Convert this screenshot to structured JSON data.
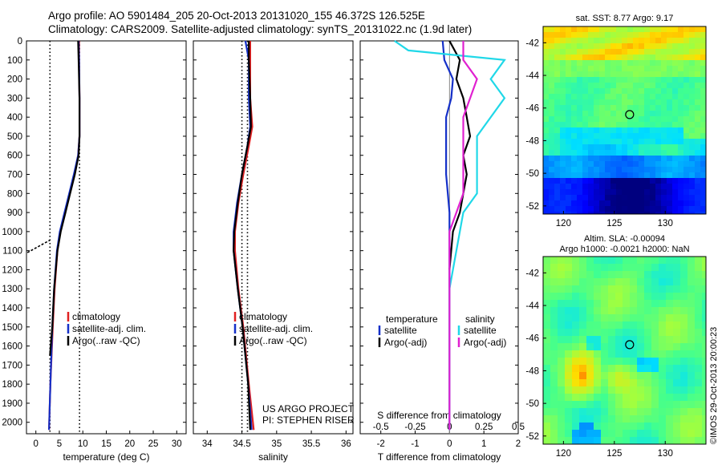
{
  "header": {
    "line1": "Argo profile: AO 5901484_205 20-Oct-2013 20131020_155 46.372S 126.525E",
    "line2": "Climatology: CARS2009. Satellite-adjusted climatology: synTS_20131022.nc (1.9d later)"
  },
  "colors": {
    "climatology": "#e02020",
    "satellite": "#1530c8",
    "argo": "#000000",
    "sat_salinity": "#20d8e8",
    "argo_salinity": "#e020d0"
  },
  "depth_axis": {
    "ticks": [
      "0",
      "100",
      "200",
      "300",
      "400",
      "500",
      "600",
      "700",
      "800",
      "900",
      "1000",
      "1100",
      "1200",
      "1300",
      "1400",
      "1500",
      "1600",
      "1700",
      "1800",
      "1900",
      "2000"
    ],
    "range": [
      0,
      2060
    ]
  },
  "chart_data": [
    {
      "type": "line",
      "id": "temperature",
      "xlabel": "temperature (deg C)",
      "xlim": [
        -2,
        32
      ],
      "xticks": [
        "0",
        "5",
        "10",
        "15",
        "20",
        "25",
        "30"
      ],
      "ylim": [
        0,
        2060
      ],
      "reference_lines": [
        3,
        9.3
      ],
      "legend": [
        "climatology",
        "satellite-adj. clim.",
        "Argo(..raw -QC)"
      ],
      "series": [
        {
          "name": "climatology",
          "color": "#e02020",
          "points": [
            [
              9.2,
              0
            ],
            [
              9.2,
              100
            ],
            [
              9.3,
              300
            ],
            [
              9.3,
              500
            ],
            [
              9.0,
              600
            ],
            [
              8.2,
              700
            ],
            [
              7.2,
              800
            ],
            [
              6.2,
              900
            ],
            [
              5.2,
              1000
            ],
            [
              4.6,
              1100
            ],
            [
              4.0,
              1300
            ],
            [
              3.6,
              1500
            ],
            [
              3.1,
              1800
            ],
            [
              2.8,
              2040
            ]
          ]
        },
        {
          "name": "satellite-adj. clim.",
          "color": "#1530c8",
          "points": [
            [
              9.1,
              0
            ],
            [
              9.2,
              100
            ],
            [
              9.3,
              300
            ],
            [
              9.3,
              500
            ],
            [
              9.0,
              600
            ],
            [
              8.1,
              700
            ],
            [
              7.1,
              800
            ],
            [
              6.1,
              900
            ],
            [
              5.1,
              1000
            ],
            [
              4.5,
              1100
            ],
            [
              3.9,
              1300
            ],
            [
              3.5,
              1500
            ],
            [
              3.1,
              1800
            ],
            [
              2.8,
              2040
            ]
          ]
        },
        {
          "name": "Argo(..raw -QC)",
          "color": "#000000",
          "points": [
            [
              9.0,
              0
            ],
            [
              9.1,
              100
            ],
            [
              9.3,
              300
            ],
            [
              9.3,
              500
            ],
            [
              9.1,
              600
            ],
            [
              8.3,
              700
            ],
            [
              7.3,
              800
            ],
            [
              6.3,
              900
            ],
            [
              5.3,
              1000
            ],
            [
              4.6,
              1100
            ],
            [
              3.9,
              1300
            ],
            [
              3.5,
              1500
            ],
            [
              3.0,
              1650
            ]
          ]
        }
      ]
    },
    {
      "type": "line",
      "id": "salinity",
      "xlabel": "salinity",
      "xlim": [
        33.8,
        36.1
      ],
      "xticks": [
        "34",
        "34.5",
        "35",
        "35.5",
        "36"
      ],
      "ylim": [
        0,
        2060
      ],
      "reference_lines": [
        34.5,
        34.58
      ],
      "legend": [
        "climatology",
        "satellite-adj. clim.",
        "Argo(..raw -QC)"
      ],
      "note": [
        "US ARGO PROJECT",
        "PI: STEPHEN RISER"
      ],
      "series": [
        {
          "name": "climatology",
          "color": "#e02020",
          "points": [
            [
              34.62,
              0
            ],
            [
              34.62,
              100
            ],
            [
              34.62,
              300
            ],
            [
              34.65,
              450
            ],
            [
              34.6,
              550
            ],
            [
              34.52,
              700
            ],
            [
              34.45,
              850
            ],
            [
              34.4,
              1000
            ],
            [
              34.4,
              1100
            ],
            [
              34.45,
              1300
            ],
            [
              34.52,
              1500
            ],
            [
              34.6,
              1800
            ],
            [
              34.67,
              2040
            ]
          ]
        },
        {
          "name": "satellite-adj. clim.",
          "color": "#1530c8",
          "points": [
            [
              34.55,
              0
            ],
            [
              34.6,
              100
            ],
            [
              34.6,
              300
            ],
            [
              34.62,
              450
            ],
            [
              34.58,
              550
            ],
            [
              34.5,
              700
            ],
            [
              34.43,
              850
            ],
            [
              34.38,
              1000
            ],
            [
              34.38,
              1100
            ],
            [
              34.44,
              1300
            ],
            [
              34.51,
              1500
            ],
            [
              34.59,
              1800
            ],
            [
              34.64,
              2040
            ]
          ]
        },
        {
          "name": "Argo(..raw -QC)",
          "color": "#000000",
          "points": [
            [
              34.6,
              0
            ],
            [
              34.6,
              100
            ],
            [
              34.62,
              300
            ],
            [
              34.63,
              450
            ],
            [
              34.58,
              550
            ],
            [
              34.5,
              700
            ],
            [
              34.44,
              850
            ],
            [
              34.39,
              1000
            ],
            [
              34.38,
              1100
            ],
            [
              34.44,
              1300
            ],
            [
              34.51,
              1500
            ],
            [
              34.59,
              1800
            ],
            [
              34.62,
              2040
            ]
          ]
        }
      ]
    },
    {
      "type": "line",
      "id": "difference",
      "xlabel": "T difference from climatology",
      "xlabel2": "S difference from climatology",
      "xlim": [
        -2.6,
        2.0
      ],
      "xticks": [
        "-2",
        "-1",
        "0",
        "1",
        "2"
      ],
      "xticks2": [
        "-0.5",
        "-0.25",
        "0",
        "0.25",
        "0.5"
      ],
      "ylim": [
        0,
        2060
      ],
      "legend_groups": [
        {
          "title": "temperature",
          "items": [
            "satellite",
            "Argo(-adj)"
          ]
        },
        {
          "title": "salinity",
          "items": [
            "satellite",
            "Argo(-adj)"
          ]
        }
      ],
      "series": [
        {
          "name": "satellite",
          "group": "temperature",
          "color": "#1530c8",
          "points": [
            [
              -0.2,
              0
            ],
            [
              -0.15,
              100
            ],
            [
              0.1,
              200
            ],
            [
              0.05,
              300
            ],
            [
              -0.1,
              400
            ],
            [
              -0.1,
              500
            ],
            [
              -0.1,
              700
            ],
            [
              0,
              900
            ],
            [
              0,
              1300
            ],
            [
              0,
              2040
            ]
          ]
        },
        {
          "name": "Argo(-adj)",
          "group": "temperature",
          "color": "#000000",
          "points": [
            [
              0,
              0
            ],
            [
              0.3,
              100
            ],
            [
              0.2,
              200
            ],
            [
              0.4,
              300
            ],
            [
              0.5,
              400
            ],
            [
              0.6,
              500
            ],
            [
              0.4,
              600
            ],
            [
              0.5,
              700
            ],
            [
              0.4,
              800
            ],
            [
              0.3,
              900
            ],
            [
              0.1,
              1000
            ],
            [
              0,
              1200
            ]
          ]
        },
        {
          "name": "satellite",
          "group": "salinity",
          "color": "#20d8e8",
          "points": [
            [
              -0.4,
              0
            ],
            [
              -0.3,
              50
            ],
            [
              0.4,
              100
            ],
            [
              0.3,
              200
            ],
            [
              0.4,
              300
            ],
            [
              0.2,
              500
            ],
            [
              0.2,
              800
            ],
            [
              0.1,
              900
            ],
            [
              0,
              1300
            ],
            [
              0,
              2040
            ]
          ]
        },
        {
          "name": "Argo(-adj)",
          "group": "salinity",
          "color": "#e020d0",
          "points": [
            [
              0.1,
              0
            ],
            [
              0.1,
              100
            ],
            [
              0.2,
              200
            ],
            [
              0.1,
              400
            ],
            [
              0.1,
              600
            ],
            [
              0.1,
              800
            ],
            [
              0,
              1000
            ],
            [
              0,
              1300
            ],
            [
              0,
              2040
            ]
          ]
        }
      ]
    },
    {
      "type": "heatmap",
      "id": "sst-map",
      "title": "sat. SST: 8.77 Argo: 9.17",
      "xlim": [
        118,
        134
      ],
      "ylim": [
        -52.5,
        -41
      ],
      "xticks": [
        "120",
        "125",
        "130"
      ],
      "yticks": [
        "-42",
        "-44",
        "-46",
        "-48",
        "-50",
        "-52"
      ],
      "marker": [
        126.5,
        -46.4
      ]
    },
    {
      "type": "heatmap",
      "id": "sla-map",
      "title": "Altim. SLA: -0.00094",
      "title2": "Argo h1000: -0.0021 h2000: NaN",
      "xlim": [
        118,
        134
      ],
      "ylim": [
        -52.5,
        -41
      ],
      "xticks": [
        "120",
        "125",
        "130"
      ],
      "yticks": [
        "-42",
        "-44",
        "-46",
        "-48",
        "-50",
        "-52"
      ],
      "marker": [
        126.5,
        -46.4
      ],
      "credit": "©IMOS 29-Oct-2013 20:00:23"
    }
  ]
}
